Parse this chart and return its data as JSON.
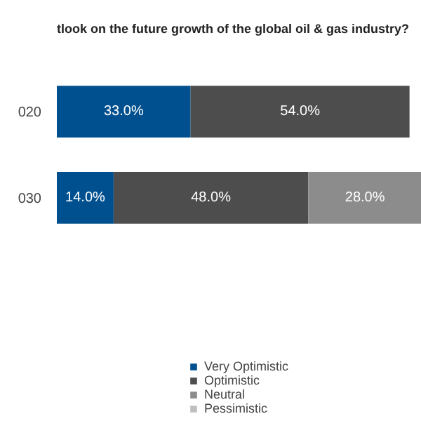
{
  "chart_data": {
    "type": "bar",
    "orientation": "horizontal",
    "stacked": true,
    "title": "tlook on the future growth of the global oil & gas industry?",
    "categories": [
      "020",
      "030"
    ],
    "tick_labels": "y",
    "grid": false,
    "legend": "bottom",
    "series": [
      {
        "name": "Very Optimistic",
        "color": "#00508f",
        "values": [
          33.0,
          14.0
        ],
        "value_labels": [
          "33.0%",
          "14.0%"
        ]
      },
      {
        "name": "Optimistic",
        "color": "#4d4d4d",
        "values": [
          54.0,
          48.0
        ],
        "value_labels": [
          "54.0%",
          "48.0%"
        ]
      },
      {
        "name": "Neutral",
        "color": "#8c8c8c",
        "values": [
          null,
          28.0
        ],
        "value_labels": [
          null,
          "28.0%"
        ]
      },
      {
        "name": "Pessimistic",
        "color": "#bfbfbf",
        "values": [
          null,
          null
        ]
      }
    ]
  }
}
